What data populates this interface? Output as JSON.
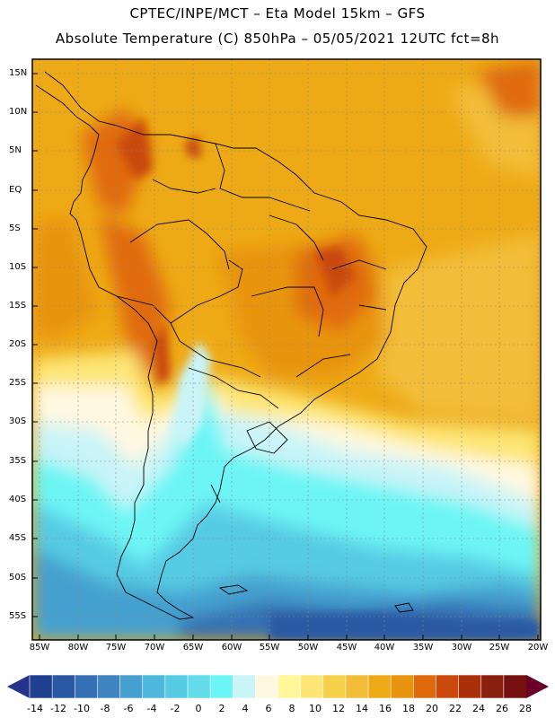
{
  "header": {
    "line1": "CPTEC/INPE/MCT –  Eta Model 15km – GFS",
    "line2": "Absolute Temperature (C) 850hPa – 05/05/2021 12UTC fct=8h"
  },
  "map": {
    "lat_labels": [
      "15N",
      "10N",
      "5N",
      "EQ",
      "5S",
      "10S",
      "15S",
      "20S",
      "25S",
      "30S",
      "35S",
      "40S",
      "45S",
      "50S",
      "55S"
    ],
    "lon_labels": [
      "85W",
      "80W",
      "75W",
      "70W",
      "65W",
      "60W",
      "55W",
      "50W",
      "45W",
      "40W",
      "35W",
      "30W",
      "25W",
      "20W"
    ]
  },
  "legend": {
    "labels": [
      "-14",
      "-12",
      "-10",
      "-8",
      "-6",
      "-4",
      "-2",
      "0",
      "2",
      "4",
      "6",
      "8",
      "10",
      "12",
      "14",
      "16",
      "18",
      "20",
      "22",
      "24",
      "26",
      "28"
    ],
    "colors": [
      "#1f3f8f",
      "#2b58a2",
      "#3570b4",
      "#3f85c1",
      "#45a0cf",
      "#4db8dc",
      "#56cbe4",
      "#62dcea",
      "#6df5f5",
      "#c9f4f8",
      "#fff8e1",
      "#fff79a",
      "#fde676",
      "#f7d04c",
      "#f2bd38",
      "#eeaa16",
      "#e8940e",
      "#e06a0b",
      "#c94a0a",
      "#aa300a",
      "#8a2010",
      "#761010"
    ],
    "under_color": "#25348a",
    "over_color": "#6a0026"
  }
}
